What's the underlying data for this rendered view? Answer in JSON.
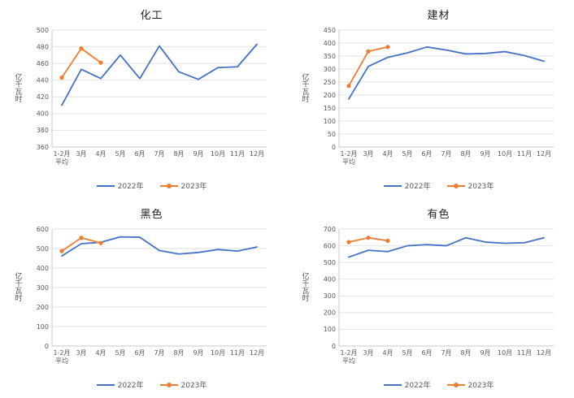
{
  "accent_colors": {
    "series_2022": "#4472C4",
    "series_2023": "#ED7D31",
    "gridline": "#d9d9d9",
    "axis": "#bfbfbf",
    "text": "#595959"
  },
  "chart_data": [
    {
      "type": "line",
      "title": "化工",
      "ylabel": "亿千瓦时",
      "ylim": [
        360,
        500
      ],
      "ytick_step": 20,
      "grid": true,
      "legend_position": "bottom",
      "categories": [
        "1-2月",
        "3月",
        "4月",
        "5月",
        "6月",
        "7月",
        "8月",
        "9月",
        "10月",
        "11月",
        "12月"
      ],
      "first_category_sub": "平均",
      "series": [
        {
          "name": "2022年",
          "color": "#4472C4",
          "marker": false,
          "values": [
            410,
            453,
            442,
            470,
            442,
            481,
            450,
            441,
            455,
            456,
            483
          ]
        },
        {
          "name": "2023年",
          "color": "#ED7D31",
          "marker": true,
          "values": [
            443,
            478,
            461
          ]
        }
      ]
    },
    {
      "type": "line",
      "title": "建材",
      "ylabel": "亿千瓦时",
      "ylim": [
        0,
        450
      ],
      "ytick_step": 50,
      "grid": true,
      "legend_position": "bottom",
      "categories": [
        "1-2月",
        "3月",
        "4月",
        "5月",
        "6月",
        "7月",
        "8月",
        "9月",
        "10月",
        "11月",
        "12月"
      ],
      "first_category_sub": "平均",
      "series": [
        {
          "name": "2022年",
          "color": "#4472C4",
          "marker": false,
          "values": [
            185,
            310,
            345,
            362,
            385,
            373,
            358,
            360,
            367,
            352,
            330
          ]
        },
        {
          "name": "2023年",
          "color": "#ED7D31",
          "marker": true,
          "values": [
            235,
            368,
            385
          ]
        }
      ]
    },
    {
      "type": "line",
      "title": "黑色",
      "ylabel": "亿千瓦时",
      "ylim": [
        0,
        600
      ],
      "ytick_step": 100,
      "grid": true,
      "legend_position": "bottom",
      "categories": [
        "1-2月",
        "3月",
        "4月",
        "5月",
        "6月",
        "7月",
        "8月",
        "9月",
        "10月",
        "11月",
        "12月"
      ],
      "first_category_sub": "平均",
      "series": [
        {
          "name": "2022年",
          "color": "#4472C4",
          "marker": false,
          "values": [
            462,
            525,
            532,
            560,
            558,
            490,
            472,
            480,
            495,
            487,
            508
          ]
        },
        {
          "name": "2023年",
          "color": "#ED7D31",
          "marker": true,
          "values": [
            487,
            555,
            528
          ]
        }
      ]
    },
    {
      "type": "line",
      "title": "有色",
      "ylabel": "亿千瓦时",
      "ylim": [
        0,
        700
      ],
      "ytick_step": 100,
      "grid": true,
      "legend_position": "bottom",
      "categories": [
        "1-2月",
        "3月",
        "4月",
        "5月",
        "6月",
        "7月",
        "8月",
        "9月",
        "10月",
        "11月",
        "12月"
      ],
      "first_category_sub": "平均",
      "series": [
        {
          "name": "2022年",
          "color": "#4472C4",
          "marker": false,
          "values": [
            532,
            573,
            565,
            600,
            607,
            600,
            648,
            622,
            615,
            618,
            648
          ]
        },
        {
          "name": "2023年",
          "color": "#ED7D31",
          "marker": true,
          "values": [
            622,
            648,
            630
          ]
        }
      ]
    }
  ]
}
